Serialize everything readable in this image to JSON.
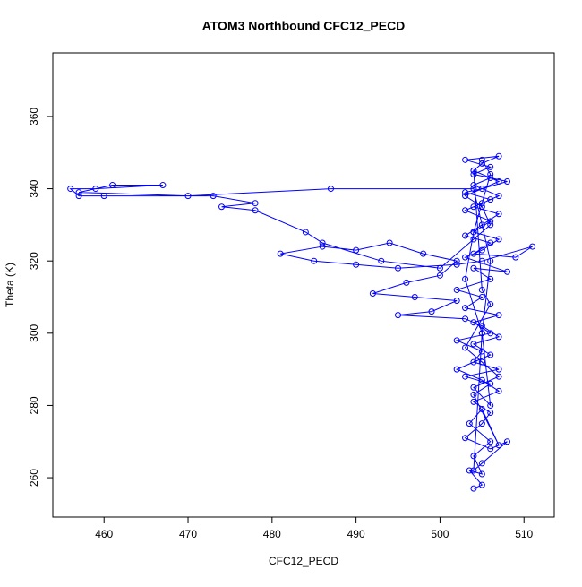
{
  "chart_data": {
    "type": "line",
    "markers": true,
    "title": "ATOM3 Northbound CFC12_PECD",
    "x_label": "CFC12_PECD",
    "y_label": "Theta (K)",
    "xlim": [
      453.9,
      513.6
    ],
    "ylim": [
      249.1,
      377.6
    ],
    "xticks": [
      460,
      470,
      480,
      490,
      500,
      510
    ],
    "yticks": [
      260,
      280,
      300,
      320,
      340,
      360
    ],
    "x": [
      504,
      505,
      503.5,
      505,
      504,
      506,
      503.5,
      505,
      507,
      504,
      506,
      503,
      507,
      504,
      505,
      502,
      506,
      504,
      507,
      503,
      505,
      502,
      506,
      504,
      508,
      503,
      505,
      507,
      504,
      506,
      503,
      505,
      507,
      504,
      506,
      504,
      505,
      507,
      503,
      506,
      504,
      508,
      505,
      503,
      506,
      504,
      507,
      505,
      503,
      506,
      504,
      509,
      511,
      505,
      502,
      495,
      490,
      485,
      481,
      486,
      490,
      494,
      498,
      502,
      500,
      496,
      492,
      497,
      502,
      499,
      495,
      503,
      505,
      507,
      504,
      506,
      502,
      505,
      507,
      504,
      506,
      505,
      503,
      506,
      508,
      505,
      504,
      505,
      506,
      504,
      487,
      470,
      457,
      461,
      467,
      459,
      456,
      457,
      460,
      473,
      478,
      474,
      478,
      484,
      486,
      493,
      500,
      504,
      506,
      505,
      503,
      507,
      504,
      505,
      506,
      503,
      505,
      507,
      504,
      506,
      505,
      503,
      504,
      506,
      505
    ],
    "series": [
      {
        "color": "#0000ff",
        "values": [
          257,
          258,
          262,
          261,
          266,
          270,
          275,
          279,
          269,
          283,
          286,
          288,
          290,
          292,
          295,
          298,
          300,
          303,
          305,
          307,
          310,
          312,
          315,
          318,
          317,
          321,
          323,
          326,
          328,
          331,
          334,
          336,
          338,
          341,
          343,
          345,
          347,
          349,
          348,
          346,
          344,
          342,
          340,
          339,
          337,
          335,
          333,
          330,
          327,
          325,
          322,
          321,
          324,
          320,
          319,
          318,
          319,
          320,
          322,
          324,
          323,
          325,
          322,
          320,
          316,
          314,
          311,
          310,
          309,
          306,
          305,
          304,
          302,
          299,
          297,
          294,
          290,
          287,
          284,
          281,
          278,
          275,
          271,
          268,
          270,
          264,
          262,
          300,
          320,
          340,
          340,
          338,
          339,
          341,
          341,
          340,
          340,
          338,
          338,
          338,
          336,
          335,
          334,
          328,
          325,
          320,
          318,
          326,
          330,
          335,
          338,
          342,
          345,
          312,
          308,
          296,
          292,
          288,
          285,
          280,
          300,
          315,
          328,
          344,
          348
        ]
      }
    ]
  }
}
